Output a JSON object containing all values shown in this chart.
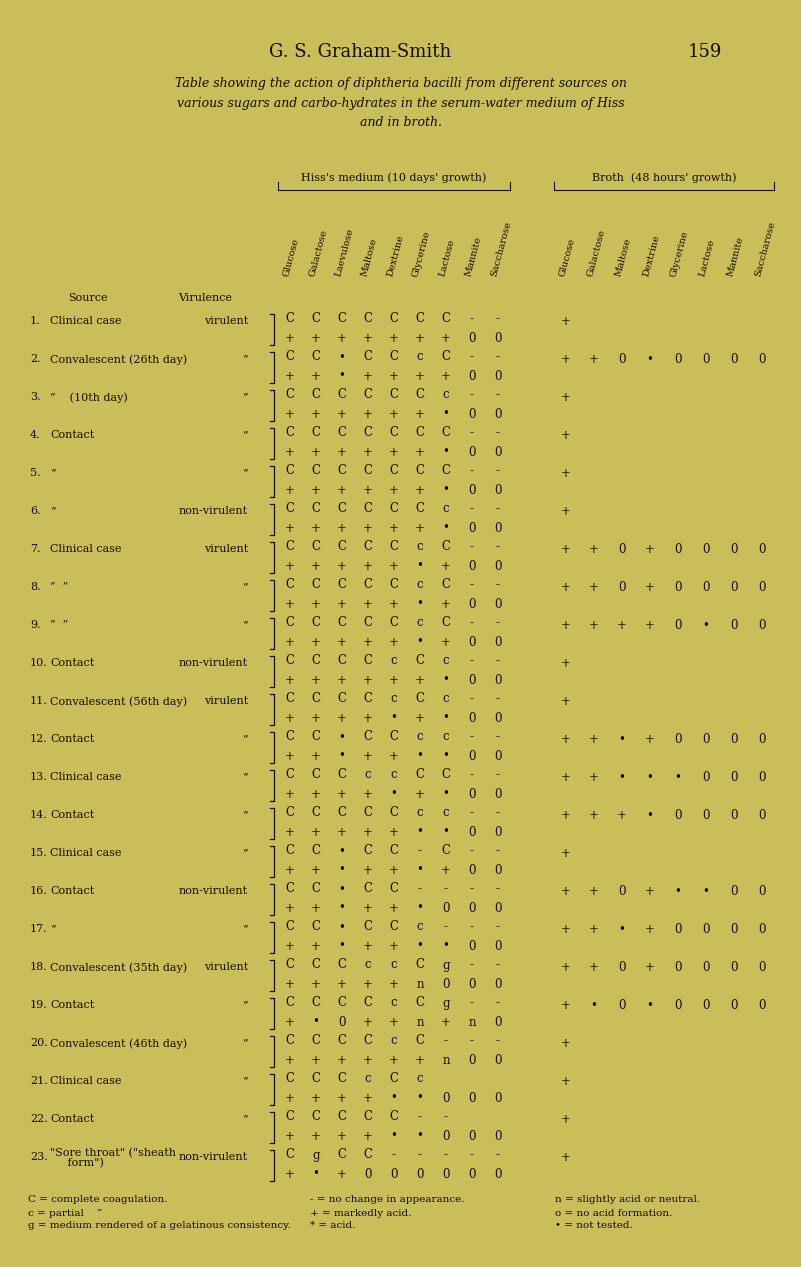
{
  "bg_color": "#c8bf5a",
  "text_color": "#1a0a00",
  "title": "G. S. Graham-Smith",
  "page_num": "159",
  "subtitle": "Table showing the action of diphtheria bacilli from different sources on\nvarious sugars and carbo-hydrates in the serum-water medium of Hiss\nand in broth.",
  "hiss_header": "Hiss's medium (10 days' growth)",
  "broth_header": "Broth  (48 hours' growth)",
  "hiss_cols": [
    "Glucose",
    "Galactose",
    "Laevulose",
    "Maltose",
    "Dextrine",
    "Glycerine",
    "Lactose",
    "Mannite",
    "Saccharose"
  ],
  "broth_cols": [
    "Glucose",
    "Galactose",
    "Maltose",
    "Dextrine",
    "Glycerine",
    "Lactose",
    "Mannite",
    "Saccharose"
  ],
  "rows": [
    {
      "n": "1.",
      "src": "Clinical case",
      "vir": "virulent",
      "ht": [
        "C",
        "C",
        "C",
        "C",
        "C",
        "C",
        "C",
        "-",
        "-"
      ],
      "hb": [
        "+",
        "+",
        "+",
        "+",
        "+",
        "+",
        "+",
        "0",
        "0"
      ],
      "br": [
        "+",
        "",
        "",
        "",
        "",
        "",
        "",
        ""
      ]
    },
    {
      "n": "2.",
      "src": "Convalescent (26th day)",
      "vir": "”",
      "ht": [
        "C",
        "C",
        "•",
        "C",
        "C",
        "c",
        "C",
        "-",
        "-"
      ],
      "hb": [
        "+",
        "+",
        "•",
        "+",
        "+",
        "+",
        "+",
        "0",
        "0"
      ],
      "br": [
        "+",
        "+",
        "0",
        "•",
        "0",
        "0",
        "0",
        "0"
      ]
    },
    {
      "n": "3.",
      "src": "”    (10th day)",
      "vir": "”",
      "ht": [
        "C",
        "C",
        "C",
        "C",
        "C",
        "C",
        "c",
        "-",
        "-"
      ],
      "hb": [
        "+",
        "+",
        "+",
        "+",
        "+",
        "+",
        "•",
        "0",
        "0"
      ],
      "br": [
        "+",
        "",
        "",
        "",
        "",
        "",
        "",
        ""
      ]
    },
    {
      "n": "4.",
      "src": "Contact",
      "vir": "”",
      "ht": [
        "C",
        "C",
        "C",
        "C",
        "C",
        "C",
        "C",
        "-",
        "-"
      ],
      "hb": [
        "+",
        "+",
        "+",
        "+",
        "+",
        "+",
        "•",
        "0",
        "0"
      ],
      "br": [
        "+",
        "",
        "",
        "",
        "",
        "",
        "",
        ""
      ]
    },
    {
      "n": "5.",
      "src": "”",
      "vir": "”",
      "ht": [
        "C",
        "C",
        "C",
        "C",
        "C",
        "C",
        "C",
        "-",
        "-"
      ],
      "hb": [
        "+",
        "+",
        "+",
        "+",
        "+",
        "+",
        "•",
        "0",
        "0"
      ],
      "br": [
        "+",
        "",
        "",
        "",
        "",
        "",
        "",
        ""
      ]
    },
    {
      "n": "6.",
      "src": "”",
      "vir": "non-virulent",
      "ht": [
        "C",
        "C",
        "C",
        "C",
        "C",
        "C",
        "c",
        "-",
        "-"
      ],
      "hb": [
        "+",
        "+",
        "+",
        "+",
        "+",
        "+",
        "•",
        "0",
        "0"
      ],
      "br": [
        "+",
        "",
        "",
        "",
        "",
        "",
        "",
        ""
      ]
    },
    {
      "n": "7.",
      "src": "Clinical case",
      "vir": "virulent",
      "ht": [
        "C",
        "C",
        "C",
        "C",
        "C",
        "c",
        "C",
        "-",
        "-"
      ],
      "hb": [
        "+",
        "+",
        "+",
        "+",
        "+",
        "•",
        "+",
        "0",
        "0"
      ],
      "br": [
        "+",
        "+",
        "0",
        "+",
        "0",
        "0",
        "0",
        "0"
      ]
    },
    {
      "n": "8.",
      "src": "”  ”",
      "vir": "”",
      "ht": [
        "C",
        "C",
        "C",
        "C",
        "C",
        "c",
        "C",
        "-",
        "-"
      ],
      "hb": [
        "+",
        "+",
        "+",
        "+",
        "+",
        "•",
        "+",
        "0",
        "0"
      ],
      "br": [
        "+",
        "+",
        "0",
        "+",
        "0",
        "0",
        "0",
        "0"
      ]
    },
    {
      "n": "9.",
      "src": "”  ”",
      "vir": "”",
      "ht": [
        "C",
        "C",
        "C",
        "C",
        "C",
        "c",
        "C",
        "-",
        "-"
      ],
      "hb": [
        "+",
        "+",
        "+",
        "+",
        "+",
        "•",
        "+",
        "0",
        "0"
      ],
      "br": [
        "+",
        "+",
        "+",
        "+",
        "0",
        "•",
        "0",
        "0"
      ]
    },
    {
      "n": "10.",
      "src": "Contact",
      "vir": "non-virulent",
      "ht": [
        "C",
        "C",
        "C",
        "C",
        "c",
        "C",
        "c",
        "-",
        "-"
      ],
      "hb": [
        "+",
        "+",
        "+",
        "+",
        "+",
        "+",
        "•",
        "0",
        "0"
      ],
      "br": [
        "+",
        "",
        "",
        "",
        "",
        "",
        "",
        ""
      ]
    },
    {
      "n": "11.",
      "src": "Convalescent (56th day)",
      "vir": "virulent",
      "ht": [
        "C",
        "C",
        "C",
        "C",
        "c",
        "C",
        "c",
        "-",
        "-"
      ],
      "hb": [
        "+",
        "+",
        "+",
        "+",
        "•",
        "+",
        "•",
        "0",
        "0"
      ],
      "br": [
        "+",
        "",
        "",
        "",
        "",
        "",
        "",
        ""
      ]
    },
    {
      "n": "12.",
      "src": "Contact",
      "vir": "”",
      "ht": [
        "C",
        "C",
        "•",
        "C",
        "C",
        "c",
        "c",
        "-",
        "-"
      ],
      "hb": [
        "+",
        "+",
        "•",
        "+",
        "+",
        "•",
        "•",
        "0",
        "0"
      ],
      "br": [
        "+",
        "+",
        "•",
        "+",
        "0",
        "0",
        "0",
        "0"
      ]
    },
    {
      "n": "13.",
      "src": "Clinical case",
      "vir": "”",
      "ht": [
        "C",
        "C",
        "C",
        "c",
        "c",
        "C",
        "C",
        "-",
        "-"
      ],
      "hb": [
        "+",
        "+",
        "+",
        "+",
        "•",
        "+",
        "•",
        "0",
        "0"
      ],
      "br": [
        "+",
        "+",
        "•",
        "•",
        "•",
        "0",
        "0",
        "0"
      ]
    },
    {
      "n": "14.",
      "src": "Contact",
      "vir": "”",
      "ht": [
        "C",
        "C",
        "C",
        "C",
        "C",
        "c",
        "c",
        "-",
        "-"
      ],
      "hb": [
        "+",
        "+",
        "+",
        "+",
        "+",
        "•",
        "•",
        "0",
        "0"
      ],
      "br": [
        "+",
        "+",
        "+",
        "•",
        "0",
        "0",
        "0",
        "0"
      ]
    },
    {
      "n": "15.",
      "src": "Clinical case",
      "vir": "”",
      "ht": [
        "C",
        "C",
        "•",
        "C",
        "C",
        "-",
        "C",
        "-",
        "-"
      ],
      "hb": [
        "+",
        "+",
        "•",
        "+",
        "+",
        "•",
        "+",
        "0",
        "0"
      ],
      "br": [
        "+",
        "",
        "",
        "",
        "",
        "",
        "",
        ""
      ]
    },
    {
      "n": "16.",
      "src": "Contact",
      "vir": "non-virulent",
      "ht": [
        "C",
        "C",
        "•",
        "C",
        "C",
        "-",
        "-",
        "-",
        "-"
      ],
      "hb": [
        "+",
        "+",
        "•",
        "+",
        "+",
        "•",
        "0",
        "0",
        "0"
      ],
      "br": [
        "+",
        "+",
        "0",
        "+",
        "•",
        "•",
        "0",
        "0"
      ]
    },
    {
      "n": "17.",
      "src": "”",
      "vir": "”",
      "ht": [
        "C",
        "C",
        "•",
        "C",
        "C",
        "c",
        "-",
        "-",
        "-"
      ],
      "hb": [
        "+",
        "+",
        "•",
        "+",
        "+",
        "•",
        "•",
        "0",
        "0"
      ],
      "br": [
        "+",
        "+",
        "•",
        "+",
        "0",
        "0",
        "0",
        "0"
      ]
    },
    {
      "n": "18.",
      "src": "Convalescent (35th day)",
      "vir": "virulent",
      "ht": [
        "C",
        "C",
        "C",
        "c",
        "c",
        "C",
        "g",
        "-",
        "-"
      ],
      "hb": [
        "+",
        "+",
        "+",
        "+",
        "+",
        "n",
        "0",
        "0",
        "0"
      ],
      "br": [
        "+",
        "+",
        "0",
        "+",
        "0",
        "0",
        "0",
        "0"
      ]
    },
    {
      "n": "19.",
      "src": "Contact",
      "vir": "”",
      "ht": [
        "C",
        "C",
        "C",
        "C",
        "c",
        "C",
        "g",
        "-",
        "-"
      ],
      "hb": [
        "+",
        "•",
        "0",
        "+",
        "+",
        "n",
        "+",
        "n",
        "0"
      ],
      "br": [
        "+",
        "•",
        "0",
        "•",
        "0",
        "0",
        "0",
        "0"
      ]
    },
    {
      "n": "20.",
      "src": "Convalescent (46th day)",
      "vir": "”",
      "ht": [
        "C",
        "C",
        "C",
        "C",
        "c",
        "C",
        "-",
        "-",
        "-"
      ],
      "hb": [
        "+",
        "+",
        "+",
        "+",
        "+",
        "+",
        "n",
        "0",
        "0"
      ],
      "br": [
        "+",
        "",
        "",
        "",
        "",
        "",
        "",
        ""
      ]
    },
    {
      "n": "21.",
      "src": "Clinical case",
      "vir": "”",
      "ht": [
        "C",
        "C",
        "C",
        "c",
        "C",
        "c",
        "",
        "",
        ""
      ],
      "hb": [
        "+",
        "+",
        "+",
        "+",
        "•",
        "•",
        "0",
        "0",
        "0"
      ],
      "br": [
        "+",
        "",
        "",
        "",
        "",
        "",
        "",
        ""
      ]
    },
    {
      "n": "22.",
      "src": "Contact",
      "vir": "”",
      "ht": [
        "C",
        "C",
        "C",
        "C",
        "C",
        "-",
        "-",
        "",
        ""
      ],
      "hb": [
        "+",
        "+",
        "+",
        "+",
        "•",
        "•",
        "0",
        "0",
        "0"
      ],
      "br": [
        "+",
        "",
        "",
        "",
        "",
        "",
        "",
        ""
      ]
    },
    {
      "n": "23.",
      "src": "\"Sore throat\" (\"sheath\n     form\")",
      "vir": "non-virulent",
      "ht": [
        "C",
        "g",
        "C",
        "C",
        "-",
        "-",
        "-",
        "-",
        "-"
      ],
      "hb": [
        "+",
        "•",
        "+",
        "0",
        "0",
        "0",
        "0",
        "0",
        "0"
      ],
      "br": [
        "+",
        "",
        "",
        "",
        "",
        "",
        "",
        ""
      ]
    }
  ],
  "legend_left": [
    "C = complete coagulation.",
    "c = partial    ”",
    "g = medium rendered of a gelatinous consistency."
  ],
  "legend_mid": [
    "- = no change in appearance.",
    "+ = markedly acid.",
    "* = acid."
  ],
  "legend_right": [
    "n = slightly acid or neutral.",
    "o = no acid formation.",
    "• = not tested."
  ]
}
